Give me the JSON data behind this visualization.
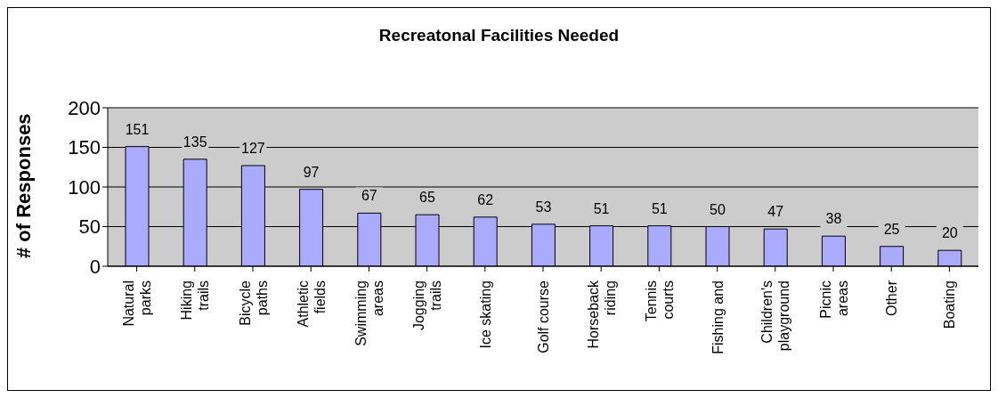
{
  "chart_data": {
    "type": "bar",
    "title": "Recreatonal Facilities Needed",
    "ylabel": "# of Responses",
    "categories": [
      "Natural parks",
      "Hiking trails",
      "Bicycle paths",
      "Athletic fields",
      "Swimming areas",
      "Jogging trails",
      "Ice skating",
      "Golf course",
      "Horseback riding",
      "Tennis courts",
      "Fishing and",
      "Children's playground",
      "Picnic areas",
      "Other",
      "Boating"
    ],
    "values": [
      151,
      135,
      127,
      97,
      67,
      65,
      62,
      53,
      51,
      51,
      50,
      47,
      38,
      25,
      20
    ],
    "color": "#aaaaff",
    "ylim": [
      0,
      200
    ],
    "yticks": [
      0,
      50,
      100,
      150,
      200
    ],
    "grid": "y",
    "data_labels": true
  }
}
